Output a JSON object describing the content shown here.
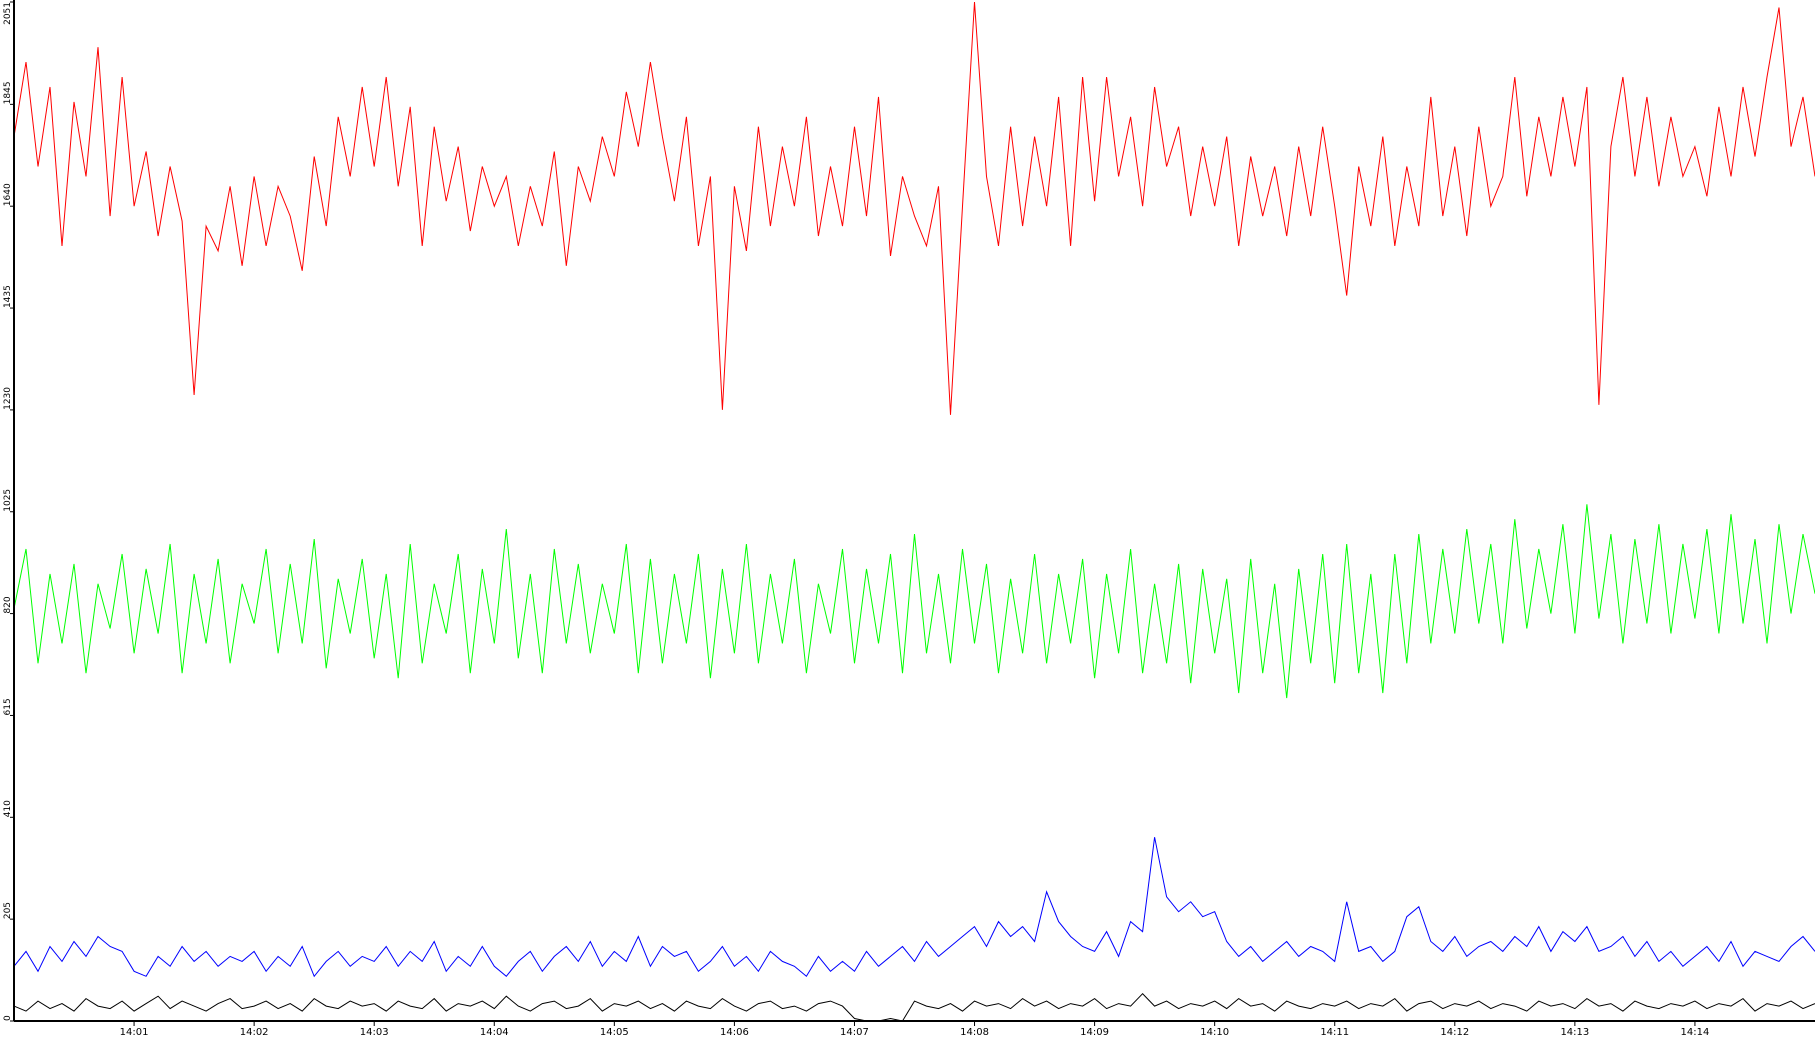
{
  "chart_data": {
    "type": "line",
    "categories": [
      null,
      null,
      null,
      null,
      null,
      null,
      null,
      null,
      null,
      null,
      "14:01",
      null,
      null,
      null,
      null,
      null,
      null,
      null,
      null,
      null,
      "14:02",
      null,
      null,
      null,
      null,
      null,
      null,
      null,
      null,
      null,
      "14:03",
      null,
      null,
      null,
      null,
      null,
      null,
      null,
      null,
      null,
      "14:04",
      null,
      null,
      null,
      null,
      null,
      null,
      null,
      null,
      null,
      "14:05",
      null,
      null,
      null,
      null,
      null,
      null,
      null,
      null,
      null,
      "14:06",
      null,
      null,
      null,
      null,
      null,
      null,
      null,
      null,
      null,
      "14:07",
      null,
      null,
      null,
      null,
      null,
      null,
      null,
      null,
      null,
      "14:08",
      null,
      null,
      null,
      null,
      null,
      null,
      null,
      null,
      null,
      "14:09",
      null,
      null,
      null,
      null,
      null,
      null,
      null,
      null,
      null,
      "14:10",
      null,
      null,
      null,
      null,
      null,
      null,
      null,
      null,
      null,
      "14:11",
      null,
      null,
      null,
      null,
      null,
      null,
      null,
      null,
      null,
      "14:12",
      null,
      null,
      null,
      null,
      null,
      null,
      null,
      null,
      null,
      "14:13",
      null,
      null,
      null,
      null,
      null,
      null,
      null,
      null,
      null,
      "14:14",
      null,
      null,
      null,
      null,
      null,
      null,
      null,
      null,
      null,
      null
    ],
    "series": [
      {
        "color": "#ff0000",
        "values": [
          1780,
          1930,
          1720,
          1880,
          1560,
          1850,
          1700,
          1960,
          1620,
          1900,
          1640,
          1750,
          1580,
          1720,
          1610,
          1260,
          1600,
          1550,
          1680,
          1520,
          1700,
          1560,
          1680,
          1620,
          1510,
          1740,
          1600,
          1820,
          1700,
          1880,
          1720,
          1900,
          1680,
          1840,
          1560,
          1800,
          1650,
          1760,
          1590,
          1720,
          1640,
          1700,
          1560,
          1680,
          1600,
          1750,
          1520,
          1720,
          1650,
          1780,
          1700,
          1870,
          1760,
          1930,
          1780,
          1650,
          1820,
          1560,
          1700,
          1230,
          1680,
          1550,
          1800,
          1600,
          1760,
          1640,
          1820,
          1580,
          1720,
          1600,
          1800,
          1620,
          1860,
          1540,
          1700,
          1620,
          1560,
          1680,
          1220,
          1640,
          2051,
          1700,
          1560,
          1800,
          1600,
          1780,
          1640,
          1860,
          1560,
          1900,
          1650,
          1900,
          1700,
          1820,
          1640,
          1880,
          1720,
          1800,
          1620,
          1760,
          1640,
          1780,
          1560,
          1740,
          1620,
          1720,
          1580,
          1760,
          1620,
          1800,
          1640,
          1460,
          1720,
          1600,
          1780,
          1560,
          1720,
          1600,
          1860,
          1620,
          1760,
          1580,
          1800,
          1640,
          1700,
          1900,
          1660,
          1820,
          1700,
          1860,
          1720,
          1880,
          1240,
          1760,
          1900,
          1700,
          1860,
          1680,
          1820,
          1700,
          1760,
          1660,
          1840,
          1700,
          1880,
          1740,
          1900,
          2040,
          1760,
          1860,
          1700
        ]
      },
      {
        "color": "#00ff00",
        "values": [
          830,
          950,
          720,
          900,
          760,
          920,
          700,
          880,
          790,
          940,
          740,
          910,
          780,
          960,
          700,
          900,
          760,
          930,
          720,
          880,
          800,
          950,
          740,
          920,
          760,
          970,
          710,
          890,
          780,
          930,
          730,
          900,
          690,
          960,
          720,
          880,
          780,
          940,
          700,
          910,
          760,
          990,
          730,
          900,
          700,
          950,
          760,
          920,
          740,
          880,
          780,
          960,
          700,
          930,
          720,
          900,
          760,
          940,
          690,
          910,
          740,
          960,
          720,
          900,
          760,
          930,
          700,
          880,
          780,
          950,
          720,
          910,
          760,
          940,
          700,
          980,
          740,
          900,
          720,
          950,
          760,
          920,
          700,
          890,
          740,
          940,
          720,
          900,
          760,
          930,
          690,
          900,
          740,
          950,
          700,
          880,
          720,
          920,
          680,
          910,
          740,
          890,
          660,
          930,
          700,
          880,
          650,
          910,
          720,
          940,
          680,
          960,
          700,
          900,
          660,
          940,
          720,
          980,
          760,
          950,
          780,
          990,
          800,
          960,
          760,
          1010,
          790,
          950,
          820,
          1000,
          780,
          1040,
          810,
          980,
          760,
          970,
          800,
          1000,
          780,
          960,
          810,
          990,
          780,
          1020,
          800,
          970,
          760,
          1000,
          820,
          980,
          860
        ]
      },
      {
        "color": "#0000ff",
        "values": [
          110,
          140,
          100,
          150,
          120,
          160,
          130,
          170,
          150,
          140,
          100,
          90,
          130,
          110,
          150,
          120,
          140,
          110,
          130,
          120,
          140,
          100,
          130,
          110,
          150,
          90,
          120,
          140,
          110,
          130,
          120,
          150,
          110,
          140,
          120,
          160,
          100,
          130,
          110,
          150,
          110,
          90,
          120,
          140,
          100,
          130,
          150,
          120,
          160,
          110,
          140,
          120,
          170,
          110,
          150,
          130,
          140,
          100,
          120,
          150,
          110,
          130,
          100,
          140,
          120,
          110,
          90,
          130,
          100,
          120,
          100,
          140,
          110,
          130,
          150,
          120,
          160,
          130,
          150,
          170,
          190,
          150,
          200,
          170,
          190,
          160,
          260,
          200,
          170,
          150,
          140,
          180,
          130,
          200,
          180,
          370,
          250,
          220,
          240,
          210,
          220,
          160,
          130,
          150,
          120,
          140,
          160,
          130,
          150,
          140,
          120,
          240,
          140,
          150,
          120,
          140,
          210,
          230,
          160,
          140,
          170,
          130,
          150,
          160,
          140,
          170,
          150,
          190,
          140,
          180,
          160,
          190,
          140,
          150,
          170,
          130,
          160,
          120,
          140,
          110,
          130,
          150,
          120,
          160,
          110,
          140,
          130,
          120,
          150,
          170,
          140
        ]
      },
      {
        "color": "#000000",
        "values": [
          30,
          20,
          40,
          25,
          35,
          20,
          45,
          30,
          25,
          40,
          20,
          35,
          50,
          25,
          40,
          30,
          20,
          35,
          45,
          25,
          30,
          40,
          25,
          35,
          20,
          45,
          30,
          25,
          40,
          30,
          35,
          20,
          40,
          30,
          25,
          45,
          20,
          35,
          30,
          40,
          25,
          50,
          30,
          20,
          35,
          40,
          25,
          30,
          45,
          20,
          35,
          30,
          40,
          25,
          35,
          20,
          40,
          30,
          25,
          45,
          30,
          20,
          35,
          40,
          25,
          30,
          20,
          35,
          40,
          30,
          5,
          0,
          0,
          5,
          0,
          40,
          30,
          25,
          35,
          20,
          40,
          30,
          35,
          25,
          45,
          30,
          40,
          25,
          35,
          30,
          45,
          25,
          35,
          30,
          55,
          30,
          40,
          25,
          35,
          30,
          40,
          25,
          45,
          30,
          35,
          20,
          40,
          30,
          25,
          35,
          30,
          40,
          25,
          35,
          30,
          45,
          20,
          35,
          40,
          25,
          35,
          30,
          40,
          25,
          35,
          30,
          20,
          40,
          30,
          35,
          25,
          45,
          30,
          35,
          20,
          40,
          30,
          25,
          35,
          30,
          40,
          25,
          35,
          30,
          45,
          20,
          35,
          30,
          40,
          25,
          35
        ]
      }
    ],
    "ylim": [
      0,
      2051
    ],
    "yticks": [
      0,
      205,
      410,
      615,
      820,
      1025,
      1230,
      1435,
      1640,
      1845,
      2051
    ],
    "grid": false
  }
}
